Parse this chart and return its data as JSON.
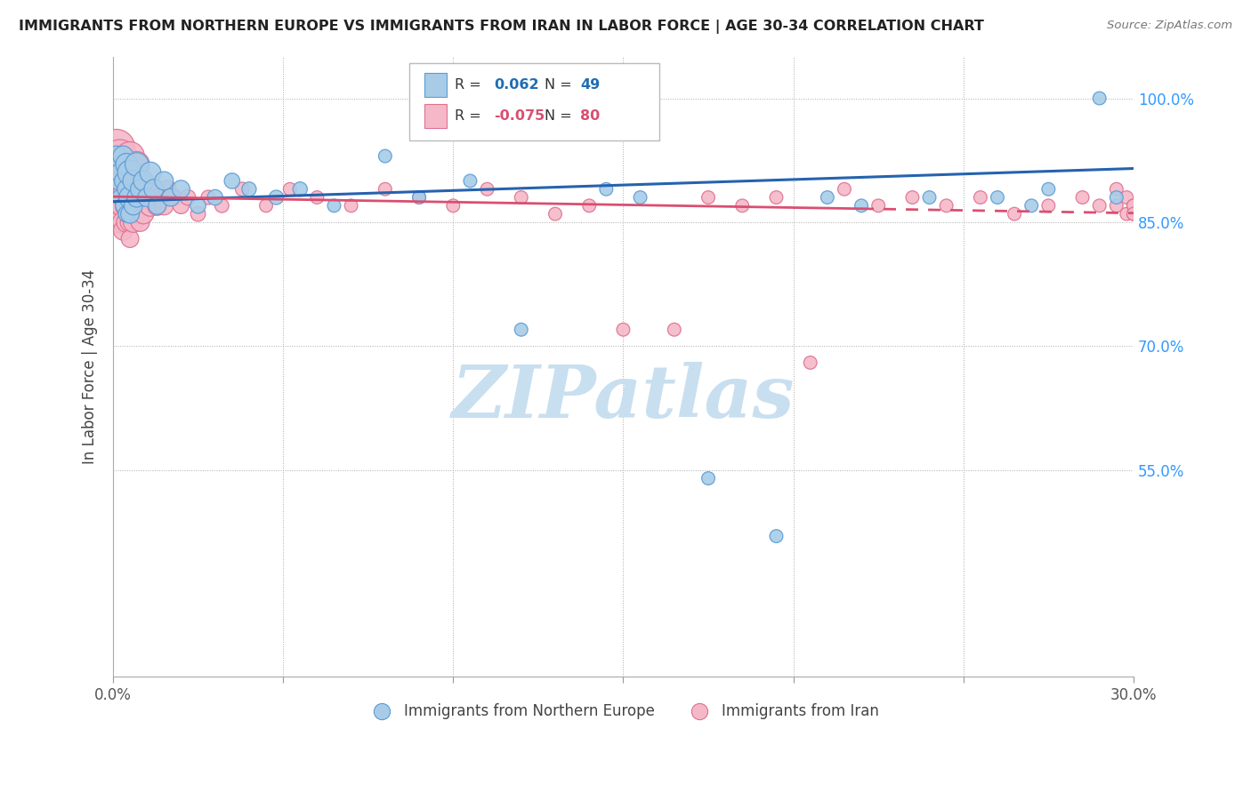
{
  "title": "IMMIGRANTS FROM NORTHERN EUROPE VS IMMIGRANTS FROM IRAN IN LABOR FORCE | AGE 30-34 CORRELATION CHART",
  "source": "Source: ZipAtlas.com",
  "ylabel": "In Labor Force | Age 30-34",
  "xlim": [
    0.0,
    0.3
  ],
  "ylim": [
    0.3,
    1.05
  ],
  "blue_color": "#a8cce8",
  "pink_color": "#f4b8c8",
  "blue_edge_color": "#5b9bd5",
  "pink_edge_color": "#e07090",
  "blue_line_color": "#2563ae",
  "pink_line_color": "#d94f70",
  "blue_legend_r_color": "#1f6eb5",
  "pink_legend_r_color": "#d94f70",
  "watermark_color": "#c8dff0",
  "right_axis_color": "#3399ff",
  "blue_x": [
    0.001,
    0.001,
    0.002,
    0.002,
    0.003,
    0.003,
    0.003,
    0.004,
    0.004,
    0.004,
    0.005,
    0.005,
    0.005,
    0.006,
    0.006,
    0.007,
    0.007,
    0.008,
    0.009,
    0.01,
    0.011,
    0.012,
    0.013,
    0.015,
    0.017,
    0.02,
    0.025,
    0.03,
    0.035,
    0.04,
    0.048,
    0.055,
    0.065,
    0.08,
    0.09,
    0.105,
    0.12,
    0.145,
    0.155,
    0.175,
    0.195,
    0.21,
    0.22,
    0.24,
    0.26,
    0.27,
    0.275,
    0.29,
    0.295
  ],
  "blue_y": [
    0.93,
    0.9,
    0.91,
    0.88,
    0.93,
    0.9,
    0.87,
    0.92,
    0.89,
    0.86,
    0.91,
    0.88,
    0.86,
    0.9,
    0.87,
    0.92,
    0.88,
    0.89,
    0.9,
    0.88,
    0.91,
    0.89,
    0.87,
    0.9,
    0.88,
    0.89,
    0.87,
    0.88,
    0.9,
    0.89,
    0.88,
    0.89,
    0.87,
    0.93,
    0.88,
    0.9,
    0.72,
    0.89,
    0.88,
    0.54,
    0.47,
    0.88,
    0.87,
    0.88,
    0.88,
    0.87,
    0.89,
    1.0,
    0.88
  ],
  "blue_size": [
    60,
    40,
    50,
    35,
    60,
    45,
    35,
    70,
    50,
    40,
    90,
    70,
    50,
    65,
    50,
    80,
    55,
    55,
    60,
    50,
    65,
    55,
    45,
    50,
    45,
    45,
    35,
    35,
    35,
    30,
    30,
    30,
    25,
    25,
    25,
    25,
    25,
    25,
    25,
    25,
    25,
    25,
    25,
    25,
    25,
    25,
    25,
    25,
    25
  ],
  "pink_x": [
    0.001,
    0.001,
    0.001,
    0.002,
    0.002,
    0.002,
    0.002,
    0.003,
    0.003,
    0.003,
    0.003,
    0.003,
    0.004,
    0.004,
    0.004,
    0.004,
    0.005,
    0.005,
    0.005,
    0.005,
    0.005,
    0.006,
    0.006,
    0.006,
    0.007,
    0.007,
    0.007,
    0.008,
    0.008,
    0.008,
    0.009,
    0.009,
    0.01,
    0.011,
    0.012,
    0.013,
    0.014,
    0.015,
    0.016,
    0.018,
    0.02,
    0.022,
    0.025,
    0.028,
    0.032,
    0.038,
    0.045,
    0.052,
    0.06,
    0.07,
    0.08,
    0.09,
    0.1,
    0.11,
    0.12,
    0.13,
    0.14,
    0.15,
    0.165,
    0.175,
    0.185,
    0.195,
    0.205,
    0.215,
    0.225,
    0.235,
    0.245,
    0.255,
    0.265,
    0.275,
    0.285,
    0.29,
    0.295,
    0.295,
    0.298,
    0.298,
    0.3,
    0.3,
    0.3,
    0.3
  ],
  "pink_y": [
    0.94,
    0.91,
    0.88,
    0.93,
    0.9,
    0.87,
    0.85,
    0.92,
    0.89,
    0.87,
    0.85,
    0.84,
    0.92,
    0.89,
    0.87,
    0.85,
    0.93,
    0.9,
    0.87,
    0.85,
    0.83,
    0.91,
    0.88,
    0.85,
    0.92,
    0.89,
    0.86,
    0.9,
    0.87,
    0.85,
    0.89,
    0.86,
    0.88,
    0.87,
    0.89,
    0.87,
    0.88,
    0.87,
    0.89,
    0.88,
    0.87,
    0.88,
    0.86,
    0.88,
    0.87,
    0.89,
    0.87,
    0.89,
    0.88,
    0.87,
    0.89,
    0.88,
    0.87,
    0.89,
    0.88,
    0.86,
    0.87,
    0.72,
    0.72,
    0.88,
    0.87,
    0.88,
    0.68,
    0.89,
    0.87,
    0.88,
    0.87,
    0.88,
    0.86,
    0.87,
    0.88,
    0.87,
    0.89,
    0.87,
    0.86,
    0.88,
    0.87,
    0.86,
    0.87,
    0.86
  ],
  "pink_size": [
    200,
    130,
    100,
    160,
    120,
    90,
    70,
    140,
    110,
    80,
    65,
    55,
    130,
    100,
    75,
    60,
    120,
    90,
    70,
    55,
    45,
    105,
    80,
    60,
    95,
    72,
    55,
    85,
    65,
    50,
    75,
    58,
    70,
    65,
    60,
    55,
    50,
    50,
    45,
    40,
    38,
    35,
    32,
    30,
    28,
    28,
    25,
    25,
    25,
    25,
    25,
    25,
    25,
    25,
    25,
    25,
    25,
    25,
    25,
    25,
    25,
    25,
    25,
    25,
    25,
    25,
    25,
    25,
    25,
    25,
    25,
    25,
    25,
    25,
    25,
    25,
    25,
    25,
    25,
    25
  ],
  "blue_trend_y0": 0.875,
  "blue_trend_y1": 0.915,
  "pink_trend_y0": 0.881,
  "pink_trend_y1": 0.861,
  "legend_x_bottom_blue": "Immigrants from Northern Europe",
  "legend_x_bottom_pink": "Immigrants from Iran"
}
